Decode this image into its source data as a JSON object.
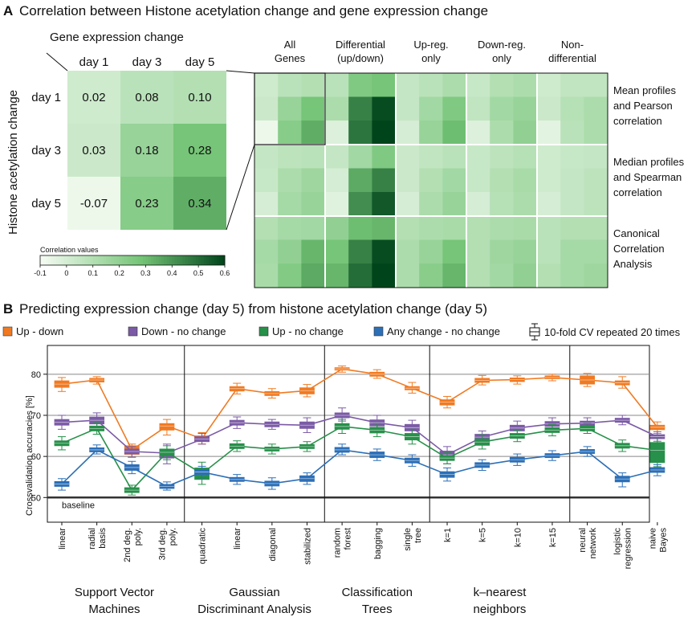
{
  "panel_a": {
    "letter": "A",
    "title": "Correlation between Histone acetylation change and gene expression change",
    "x_title": "Gene expression change",
    "y_title": "Histone acetylation change",
    "cols": [
      "day 1",
      "day 3",
      "day 5"
    ],
    "rows": [
      "day 1",
      "day 3",
      "day 5"
    ],
    "values": [
      [
        0.02,
        0.08,
        0.1
      ],
      [
        0.03,
        0.18,
        0.28
      ],
      [
        -0.07,
        0.23,
        0.34
      ]
    ],
    "colorbar": {
      "title": "Correlation values",
      "ticks": [
        "-0.1",
        "0",
        "0.1",
        "0.2",
        "0.3",
        "0.4",
        "0.5",
        "0.6"
      ],
      "min": -0.1,
      "max": 0.6,
      "color_low": "#f7fcf5",
      "color_high": "#00441b"
    },
    "big_cols": [
      [
        "All",
        "Genes"
      ],
      [
        "Differential",
        "(up/down)"
      ],
      [
        "Up-reg.",
        "only"
      ],
      [
        "Down-reg.",
        "only"
      ],
      [
        "Non-",
        "differential"
      ]
    ],
    "big_rows": [
      [
        "Mean profiles",
        "and Pearson",
        "correlation"
      ],
      [
        "Median profiles",
        "and Spearman",
        "correlation"
      ],
      [
        "Canonical",
        "Correlation",
        "Analysis"
      ]
    ],
    "heatmap": [
      [
        [
          0.02,
          0.08,
          0.1
        ],
        [
          0.03,
          0.18,
          0.28
        ],
        [
          -0.07,
          0.23,
          0.34
        ]
      ],
      [
        [
          0.08,
          0.25,
          0.28
        ],
        [
          0.12,
          0.45,
          0.58
        ],
        [
          -0.02,
          0.48,
          0.62
        ]
      ],
      [
        [
          0.05,
          0.08,
          0.12
        ],
        [
          0.05,
          0.15,
          0.25
        ],
        [
          0.0,
          0.18,
          0.3
        ]
      ],
      [
        [
          0.04,
          0.1,
          0.12
        ],
        [
          0.06,
          0.15,
          0.18
        ],
        [
          -0.02,
          0.12,
          0.2
        ]
      ],
      [
        [
          0.02,
          0.06,
          0.06
        ],
        [
          0.03,
          0.09,
          0.12
        ],
        [
          -0.04,
          0.08,
          0.12
        ]
      ],
      [
        [
          0.05,
          0.07,
          0.08
        ],
        [
          0.04,
          0.12,
          0.16
        ],
        [
          0.0,
          0.14,
          0.18
        ]
      ],
      [
        [
          0.05,
          0.15,
          0.25
        ],
        [
          0.0,
          0.35,
          0.45
        ],
        [
          -0.03,
          0.42,
          0.55
        ]
      ],
      [
        [
          0.03,
          0.06,
          0.08
        ],
        [
          0.03,
          0.1,
          0.15
        ],
        [
          0.0,
          0.12,
          0.18
        ]
      ],
      [
        [
          0.04,
          0.07,
          0.09
        ],
        [
          0.04,
          0.1,
          0.13
        ],
        [
          0.0,
          0.09,
          0.12
        ]
      ],
      [
        [
          0.02,
          0.04,
          0.05
        ],
        [
          0.02,
          0.05,
          0.07
        ],
        [
          0.0,
          0.05,
          0.07
        ]
      ],
      [
        [
          0.1,
          0.14,
          0.15
        ],
        [
          0.14,
          0.2,
          0.32
        ],
        [
          0.13,
          0.24,
          0.35
        ]
      ],
      [
        [
          0.2,
          0.3,
          0.32
        ],
        [
          0.28,
          0.45,
          0.58
        ],
        [
          0.32,
          0.5,
          0.62
        ]
      ],
      [
        [
          0.1,
          0.12,
          0.13
        ],
        [
          0.12,
          0.18,
          0.28
        ],
        [
          0.12,
          0.22,
          0.32
        ]
      ],
      [
        [
          0.1,
          0.12,
          0.13
        ],
        [
          0.1,
          0.16,
          0.18
        ],
        [
          0.1,
          0.15,
          0.2
        ]
      ],
      [
        [
          0.08,
          0.1,
          0.1
        ],
        [
          0.08,
          0.14,
          0.14
        ],
        [
          0.1,
          0.14,
          0.16
        ]
      ]
    ]
  },
  "panel_b": {
    "letter": "B",
    "title": "Predicting expression change (day 5) from histone acetylation change (day 5)",
    "legend_note": "10-fold CV repeated 20 times",
    "baseline_label": "baseline",
    "chart_data": {
      "type": "line",
      "ylabel": "Crossvalidation accuracies [%]",
      "ylim": [
        44,
        87
      ],
      "yticks": [
        50,
        60,
        70,
        80
      ],
      "baseline": 50,
      "categories": [
        "linear",
        "radial basis",
        "2nd deg. poly.",
        "3rd deg. poly.",
        "quadratic",
        "linear",
        "diagonal",
        "stabilized",
        "random forest",
        "bagging",
        "single tree",
        "k=1",
        "k=5",
        "k=10",
        "k=15",
        "neural network",
        "logistic regression",
        "naive Bayes"
      ],
      "category_lines": [
        [
          "linear"
        ],
        [
          "radial",
          "basis"
        ],
        [
          "2nd deg.",
          "poly."
        ],
        [
          "3rd deg.",
          "poly."
        ],
        [
          "quadratic"
        ],
        [
          "linear"
        ],
        [
          "diagonal"
        ],
        [
          "stabilized"
        ],
        [
          "random",
          "forest"
        ],
        [
          "bagging"
        ],
        [
          "single",
          "tree"
        ],
        [
          "k=1"
        ],
        [
          "k=5"
        ],
        [
          "k=10"
        ],
        [
          "k=15"
        ],
        [
          "neural",
          "network"
        ],
        [
          "logistic",
          "regression"
        ],
        [
          "naive",
          "Bayes"
        ]
      ],
      "groups": [
        {
          "lines": [
            "Support Vector",
            "Machines"
          ],
          "start": 0,
          "end": 3
        },
        {
          "lines": [
            "Gaussian",
            "Discriminant Analysis"
          ],
          "start": 4,
          "end": 7
        },
        {
          "lines": [
            "Classification",
            "Trees"
          ],
          "start": 8,
          "end": 10
        },
        {
          "lines": [
            "k–nearest",
            "neighbors"
          ],
          "start": 11,
          "end": 14
        }
      ],
      "series": [
        {
          "name": "Up - down",
          "color": "#f07a22",
          "values": [
            77.6,
            78.6,
            61.6,
            67.4,
            64.3,
            76.5,
            75.3,
            76.0,
            81.3,
            80.0,
            76.6,
            73.2,
            78.5,
            78.7,
            79.2,
            78.6,
            77.9,
            67.1
          ],
          "box_low": [
            76.8,
            78.1,
            60.5,
            66.4,
            63.6,
            75.9,
            74.8,
            75.2,
            81.0,
            79.5,
            76.2,
            72.5,
            78.0,
            78.2,
            78.9,
            77.6,
            77.4,
            66.5
          ],
          "box_high": [
            78.4,
            79.0,
            62.6,
            68.0,
            65.0,
            77.0,
            75.8,
            76.7,
            81.6,
            80.5,
            77.0,
            73.8,
            79.0,
            79.1,
            79.6,
            79.6,
            78.4,
            67.6
          ],
          "whisk_low": [
            75.8,
            77.6,
            59.8,
            65.2,
            63.0,
            75.2,
            74.2,
            74.5,
            80.5,
            79.0,
            75.4,
            71.8,
            77.4,
            77.6,
            78.4,
            77.0,
            76.6,
            65.6
          ],
          "whisk_high": [
            79.2,
            79.4,
            63.0,
            69.0,
            65.8,
            77.8,
            76.5,
            77.5,
            82.0,
            81.1,
            78.0,
            74.6,
            79.7,
            79.6,
            80.0,
            80.2,
            79.4,
            68.4
          ]
        },
        {
          "name": "Down - no change",
          "color": "#7b5aa6",
          "values": [
            68.3,
            68.8,
            61.2,
            60.8,
            64.2,
            68.2,
            67.8,
            67.6,
            70.0,
            68.2,
            67.0,
            60.4,
            64.7,
            66.9,
            67.9,
            68.1,
            68.8,
            64.8
          ],
          "box_low": [
            67.6,
            67.9,
            60.6,
            59.6,
            63.6,
            67.6,
            67.2,
            66.8,
            69.4,
            67.4,
            66.2,
            59.4,
            64.0,
            66.2,
            67.3,
            67.5,
            68.3,
            64.3
          ],
          "box_high": [
            69.0,
            69.6,
            61.8,
            61.8,
            64.8,
            68.8,
            68.4,
            68.4,
            70.6,
            68.9,
            67.8,
            61.3,
            65.4,
            67.6,
            68.5,
            68.6,
            69.3,
            65.3
          ],
          "whisk_low": [
            66.6,
            66.8,
            59.8,
            58.2,
            63.0,
            66.8,
            66.6,
            65.8,
            68.6,
            66.4,
            65.2,
            58.2,
            63.2,
            65.3,
            66.6,
            66.9,
            67.7,
            63.7
          ],
          "whisk_high": [
            70.0,
            70.6,
            62.4,
            63.0,
            65.6,
            69.6,
            69.0,
            69.4,
            71.8,
            70.0,
            68.8,
            62.4,
            66.2,
            68.6,
            69.4,
            69.4,
            70.0,
            66.0
          ]
        },
        {
          "name": "Up - no change",
          "color": "#27904a",
          "values": [
            63.2,
            66.8,
            51.8,
            61.0,
            55.8,
            62.5,
            61.8,
            62.4,
            67.3,
            66.4,
            64.8,
            59.6,
            63.5,
            65.0,
            66.4,
            66.8,
            62.6,
            61.5
          ],
          "box_low": [
            62.6,
            66.2,
            51.2,
            60.2,
            54.4,
            61.9,
            61.3,
            61.9,
            66.6,
            65.7,
            64.0,
            59.0,
            62.7,
            64.4,
            65.8,
            66.2,
            62.0,
            58.5
          ],
          "box_high": [
            63.8,
            67.4,
            52.4,
            61.8,
            57.2,
            63.1,
            62.3,
            62.9,
            68.0,
            67.1,
            65.6,
            60.2,
            64.3,
            65.6,
            67.0,
            67.4,
            63.2,
            63.4
          ],
          "whisk_low": [
            61.6,
            65.4,
            50.6,
            59.2,
            53.2,
            61.2,
            60.6,
            61.2,
            65.6,
            64.8,
            63.0,
            58.2,
            61.8,
            63.6,
            65.0,
            65.6,
            61.2,
            57.5
          ],
          "whisk_high": [
            64.8,
            68.2,
            53.0,
            62.6,
            58.6,
            63.8,
            63.0,
            63.6,
            69.0,
            68.0,
            66.6,
            61.0,
            65.2,
            66.4,
            67.8,
            68.0,
            64.0,
            64.6
          ]
        },
        {
          "name": "Any change - no change",
          "color": "#2c6fb7",
          "values": [
            53.3,
            61.6,
            57.3,
            52.7,
            56.2,
            54.4,
            53.4,
            54.6,
            61.6,
            60.4,
            59.0,
            55.6,
            57.9,
            59.2,
            60.2,
            61.2,
            54.5,
            56.7
          ],
          "box_low": [
            52.7,
            61.1,
            56.6,
            52.2,
            55.6,
            53.9,
            52.8,
            53.9,
            61.0,
            59.7,
            58.4,
            54.9,
            57.3,
            58.6,
            59.7,
            60.7,
            53.8,
            56.1
          ],
          "box_high": [
            53.9,
            62.1,
            58.0,
            53.2,
            56.8,
            54.9,
            54.0,
            55.3,
            62.2,
            61.1,
            59.6,
            56.3,
            58.5,
            59.8,
            60.7,
            61.7,
            55.2,
            57.3
          ],
          "whisk_low": [
            51.8,
            60.6,
            55.8,
            51.8,
            54.8,
            53.2,
            52.0,
            53.2,
            60.4,
            59.0,
            57.6,
            54.0,
            56.6,
            57.8,
            59.0,
            60.0,
            52.6,
            55.3
          ],
          "whisk_high": [
            54.6,
            62.8,
            58.8,
            53.8,
            57.6,
            55.6,
            54.8,
            56.0,
            63.0,
            61.8,
            60.4,
            57.2,
            59.2,
            60.6,
            61.4,
            62.4,
            56.0,
            58.0
          ]
        }
      ]
    }
  }
}
